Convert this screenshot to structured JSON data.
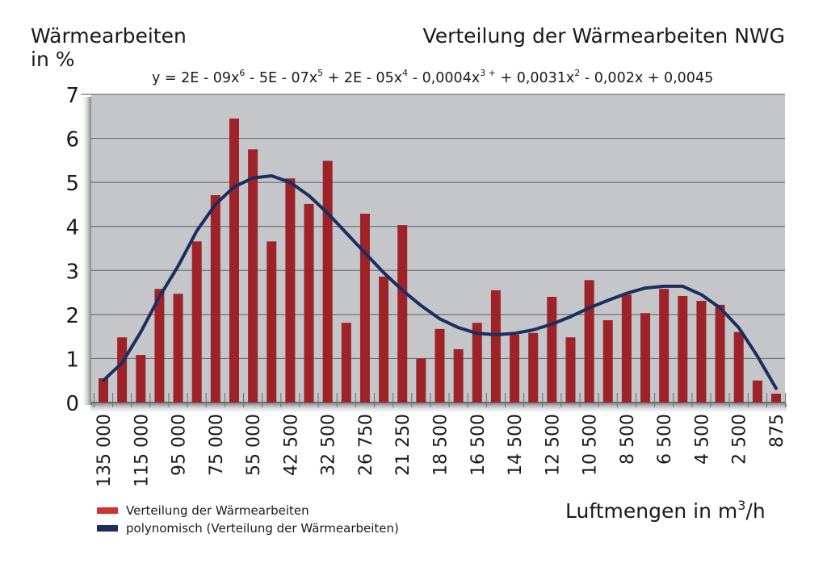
{
  "chart_data": {
    "type": "bar",
    "title": "Verteilung der Wärmearbeiten NWG",
    "ylabel_line1": "Wärmearbeiten",
    "ylabel_line2": "in %",
    "xlabel_text": "Luftmengen in m",
    "xlabel_sup": "3",
    "xlabel_unit": "/h",
    "equation": {
      "parts": [
        {
          "t": "y = 2E - 09x"
        },
        {
          "sup": "6"
        },
        {
          "t": " - 5E - 07x"
        },
        {
          "sup": "5"
        },
        {
          "t": " + 2E - 05x"
        },
        {
          "sup": "4"
        },
        {
          "t": " - 0,0004x"
        },
        {
          "sup": "3 +"
        },
        {
          "t": " + 0,0031x"
        },
        {
          "sup": "2"
        },
        {
          "t": " - 0,002x + 0,0045"
        }
      ]
    },
    "ylim": [
      0,
      7
    ],
    "yticks": [
      0,
      1,
      2,
      3,
      4,
      5,
      6,
      7
    ],
    "grid": true,
    "xtick_labels": [
      "135 000",
      "115 000",
      "95 000",
      "75 000",
      "55 000",
      "42 500",
      "32 500",
      "26 750",
      "21 250",
      "18 500",
      "16 500",
      "14 500",
      "12 500",
      "10 500",
      "8 500",
      "6 500",
      "4 500",
      "2 500",
      "875"
    ],
    "series": [
      {
        "name": "Verteilung der Wärmearbeiten",
        "type": "bar",
        "color": "#9e2329",
        "values": [
          0.55,
          1.48,
          1.08,
          2.58,
          2.47,
          3.66,
          4.71,
          6.45,
          5.75,
          3.66,
          5.09,
          4.51,
          5.49,
          1.81,
          4.29,
          2.86,
          4.03,
          1.0,
          1.67,
          1.21,
          1.81,
          2.55,
          1.54,
          1.58,
          2.4,
          1.48,
          2.78,
          1.87,
          2.45,
          2.03,
          2.58,
          2.42,
          2.31,
          2.22,
          1.6,
          0.5,
          0.2
        ]
      },
      {
        "name": "polynomisch (Verteilung der Wärmearbeiten)",
        "type": "line",
        "color": "#1c2d5e",
        "values": [
          0.5,
          0.9,
          1.6,
          2.4,
          3.1,
          3.9,
          4.5,
          4.9,
          5.1,
          5.15,
          5.0,
          4.7,
          4.3,
          3.85,
          3.4,
          2.95,
          2.55,
          2.2,
          1.9,
          1.7,
          1.57,
          1.54,
          1.57,
          1.65,
          1.78,
          1.95,
          2.15,
          2.32,
          2.48,
          2.6,
          2.64,
          2.64,
          2.45,
          2.15,
          1.7,
          1.05,
          0.32
        ]
      }
    ],
    "legend": {
      "position": "bottom-left",
      "items": [
        {
          "label": "Verteilung der Wärmearbeiten",
          "color": "#cc3333"
        },
        {
          "label": "polynomisch (Verteilung der Wärmearbeiten)",
          "color": "#1c2d5e"
        }
      ]
    }
  }
}
